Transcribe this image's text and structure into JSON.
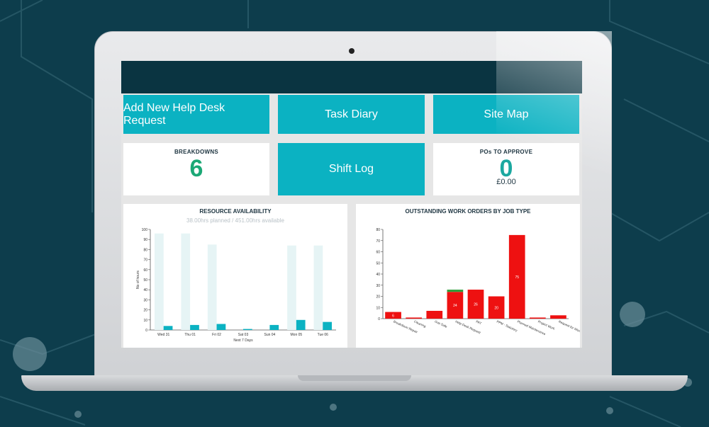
{
  "tiles": {
    "help_desk": "Add New Help Desk Request",
    "task_diary": "Task Diary",
    "site_map": "Site Map",
    "shift_log": "Shift Log"
  },
  "breakdowns": {
    "title": "BREAKDOWNS",
    "value": "6"
  },
  "pos": {
    "title": "POs TO APPROVE",
    "value": "0",
    "amount": "£0.00"
  },
  "resource_panel": {
    "title": "RESOURCE AVAILABILITY",
    "subtitle": "38.00hrs planned / 451.00hrs available"
  },
  "work_orders_panel": {
    "title": "OUTSTANDING WORK ORDERS BY JOB TYPE"
  },
  "colors": {
    "teal": "#0bb2c2",
    "dark": "#0a3441",
    "green": "#1ca876",
    "red": "#ee1111",
    "available": "#e6f4f5"
  },
  "chart_data": [
    {
      "type": "bar",
      "title": "RESOURCE AVAILABILITY",
      "subtitle": "38.00hrs planned / 451.00hrs available",
      "categories": [
        "Wed 31",
        "Thu 01",
        "Fri 02",
        "Sat 03",
        "Sun 04",
        "Mon 05",
        "Tue 06"
      ],
      "series": [
        {
          "values": [
            96,
            96,
            85,
            0,
            0,
            84,
            84
          ]
        },
        {
          "values": [
            4,
            5,
            6,
            1,
            5,
            10,
            8
          ]
        }
      ],
      "xlabel": "Next 7 Days",
      "ylabel": "No of hours",
      "ylim": [
        0,
        100
      ],
      "yticks": [
        0,
        10,
        20,
        30,
        40,
        50,
        60,
        70,
        80,
        90,
        100
      ],
      "grid": false
    },
    {
      "type": "bar",
      "title": "OUTSTANDING WORK ORDERS BY JOB TYPE",
      "categories": [
        "Breakdown Repair",
        "Cleaning",
        "Gas Safe",
        "Help Desk Request",
        "PAT",
        "PPM - Statutory",
        "Planned Maintenance",
        "Project Work",
        "Request for Work"
      ],
      "series": [
        {
          "values": [
            6,
            1,
            7,
            24,
            26,
            20,
            75,
            1,
            3
          ]
        },
        {
          "values": [
            0,
            0,
            0,
            2,
            0,
            0,
            0,
            0,
            0
          ]
        }
      ],
      "data_labels": [
        "6",
        "",
        "",
        "24",
        "26",
        "20",
        "75",
        "",
        ""
      ],
      "ylim": [
        0,
        80
      ],
      "yticks": [
        0,
        10,
        20,
        30,
        40,
        50,
        60,
        70,
        80
      ],
      "grid": false
    }
  ]
}
